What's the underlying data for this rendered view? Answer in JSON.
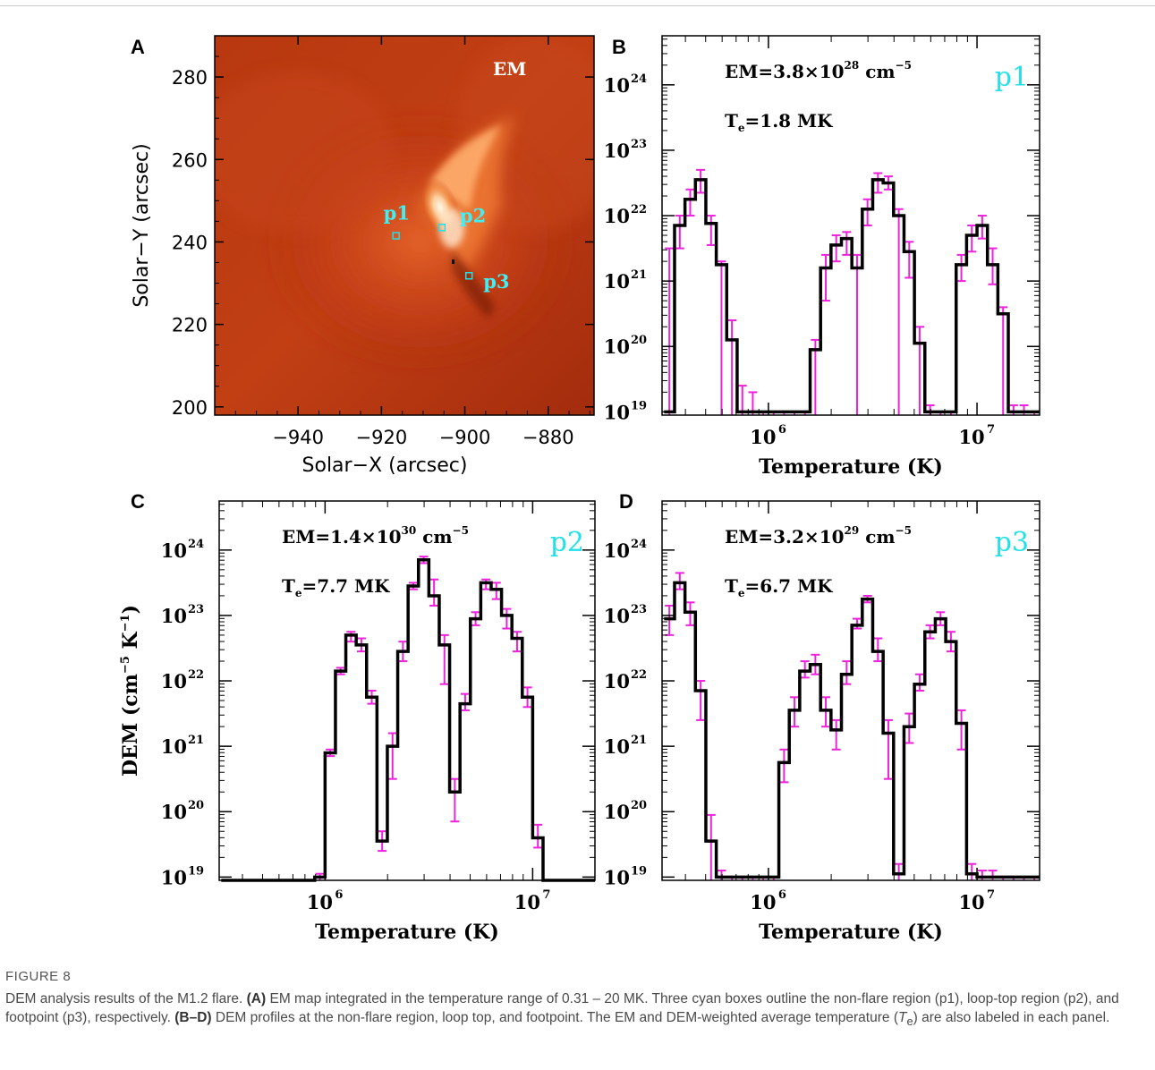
{
  "figure": {
    "caption_title": "FIGURE 8",
    "caption_parts": [
      {
        "t": "DEM analysis results of the M1.2 flare. ",
        "b": false
      },
      {
        "t": "(A)",
        "b": true
      },
      {
        "t": " EM map integrated in the temperature range of 0.31 – 20 MK. Three cyan boxes outline the non-flare region (p1), loop-top region (p2), and footpoint (p3), respectively. ",
        "b": false
      },
      {
        "t": "(B–D)",
        "b": true
      },
      {
        "t": " DEM profiles at the non-flare region, loop top, and footpoint. The EM and DEM-weighted average temperature (",
        "b": false
      },
      {
        "t": "T",
        "b": false,
        "i": true
      },
      {
        "t": "e",
        "b": false,
        "sub": true
      },
      {
        "t": ") are also labeled in each panel.",
        "b": false
      }
    ]
  },
  "colors": {
    "cyan": "#22e0e8",
    "magenta": "#ee22dd",
    "step": "#000000"
  },
  "chart_data": [
    {
      "panel": "A",
      "type": "heatmap",
      "map_label": "EM",
      "xlabel": "Solar−X (arcsec)",
      "ylabel": "Solar−Y (arcsec)",
      "xlim": [
        -960,
        -869
      ],
      "ylim": [
        198,
        290
      ],
      "xticks": [
        -940,
        -920,
        -900,
        -880
      ],
      "xtick_labels": [
        "−940",
        "−920",
        "−900",
        "−880"
      ],
      "yticks": [
        200,
        220,
        240,
        260,
        280
      ],
      "boxes": [
        {
          "name": "p1",
          "x": -916.5,
          "y": 241.5
        },
        {
          "name": "p2",
          "x": -905.5,
          "y": 243.5
        },
        {
          "name": "p3",
          "x": -899.0,
          "y": 231.8
        }
      ]
    },
    {
      "panel": "B",
      "type": "bar",
      "region": "p1",
      "em_text": "EM=3.8×10",
      "em_exp": "28",
      "em_unit": " cm",
      "em_unit_exp": "−5",
      "te_text": "T",
      "te_sub": "e",
      "te_value": "=1.8 MK",
      "xlabel": "Temperature (K)",
      "ylabel": "",
      "xlim_logT": [
        5.49,
        7.3
      ],
      "ylim_log": [
        18.95,
        24.75
      ],
      "logT_edges": [
        5.5,
        5.55,
        5.6,
        5.65,
        5.7,
        5.75,
        5.8,
        5.85,
        5.9,
        5.95,
        6.0,
        6.05,
        6.1,
        6.15,
        6.2,
        6.25,
        6.3,
        6.35,
        6.4,
        6.45,
        6.5,
        6.55,
        6.6,
        6.65,
        6.7,
        6.75,
        6.8,
        6.85,
        6.9,
        6.95,
        7.0,
        7.05,
        7.1,
        7.15,
        7.2,
        7.25,
        7.3
      ],
      "log_dem": [
        19.0,
        21.85,
        22.25,
        22.55,
        21.88,
        21.25,
        20.1,
        19.0,
        19.0,
        19.0,
        19.0,
        19.0,
        19.0,
        19.0,
        19.95,
        21.2,
        21.55,
        21.65,
        21.2,
        22.1,
        22.55,
        22.5,
        22.0,
        21.45,
        20.05,
        19.0,
        19.0,
        19.0,
        21.25,
        21.7,
        21.85,
        21.25,
        20.5,
        19.0,
        19.0,
        19.0
      ],
      "err_lo": [
        18.95,
        21.5,
        22.0,
        22.35,
        21.55,
        18.95,
        18.95,
        18.95,
        18.95,
        18.95,
        18.95,
        18.95,
        18.95,
        18.95,
        18.95,
        20.7,
        21.3,
        21.4,
        18.95,
        21.85,
        22.35,
        22.4,
        18.95,
        21.05,
        18.95,
        18.95,
        18.95,
        18.95,
        21.0,
        21.45,
        21.65,
        20.95,
        18.95,
        18.95,
        18.95,
        18.95
      ],
      "err_hi": [
        21.5,
        22.0,
        22.4,
        22.7,
        22.0,
        21.3,
        20.4,
        19.4,
        19.3,
        19.0,
        19.0,
        19.0,
        19.0,
        19.0,
        20.1,
        21.4,
        21.7,
        21.75,
        21.4,
        22.25,
        22.65,
        22.6,
        22.1,
        21.6,
        20.3,
        19.1,
        19.0,
        19.0,
        21.4,
        21.85,
        22.0,
        21.5,
        20.6,
        19.1,
        19.1,
        19.0
      ]
    },
    {
      "panel": "C",
      "type": "bar",
      "region": "p2",
      "em_text": "EM=1.4×10",
      "em_exp": "30",
      "em_unit": " cm",
      "em_unit_exp": "−5",
      "te_text": "T",
      "te_sub": "e",
      "te_value": "=7.7 MK",
      "xlabel": "Temperature (K)",
      "ylabel": "DEM (cm",
      "ylabel_exp1": "−5",
      "ylabel_mid": " K",
      "ylabel_exp2": "−1",
      "ylabel_end": ")",
      "xlim_logT": [
        5.49,
        7.3
      ],
      "ylim_log": [
        18.95,
        24.75
      ],
      "logT_edges": [
        5.5,
        5.55,
        5.6,
        5.65,
        5.7,
        5.75,
        5.8,
        5.85,
        5.9,
        5.95,
        6.0,
        6.05,
        6.1,
        6.15,
        6.2,
        6.25,
        6.3,
        6.35,
        6.4,
        6.45,
        6.5,
        6.55,
        6.6,
        6.65,
        6.7,
        6.75,
        6.8,
        6.85,
        6.9,
        6.95,
        7.0,
        7.05,
        7.1,
        7.15,
        7.2,
        7.25,
        7.3
      ],
      "log_dem": [
        18.95,
        18.95,
        18.95,
        18.95,
        18.95,
        18.95,
        18.95,
        18.95,
        18.95,
        19.0,
        20.9,
        22.15,
        22.7,
        22.55,
        21.75,
        19.55,
        21.0,
        22.45,
        23.45,
        23.85,
        23.3,
        22.55,
        20.3,
        21.65,
        22.95,
        23.5,
        23.4,
        23.0,
        22.65,
        21.75,
        19.6,
        18.95,
        18.95,
        18.95,
        18.95,
        18.95
      ],
      "err_lo": [
        18.95,
        18.95,
        18.95,
        18.95,
        18.95,
        18.95,
        18.95,
        18.95,
        18.95,
        18.95,
        20.85,
        22.1,
        22.6,
        22.45,
        21.65,
        19.4,
        20.5,
        22.3,
        23.4,
        23.8,
        23.15,
        21.95,
        19.85,
        21.55,
        22.85,
        23.4,
        23.25,
        22.8,
        22.45,
        21.6,
        19.45,
        18.95,
        18.95,
        18.95,
        18.95,
        18.95
      ],
      "err_hi": [
        18.95,
        18.95,
        18.95,
        18.95,
        18.95,
        18.95,
        18.95,
        18.95,
        18.95,
        19.05,
        20.95,
        22.2,
        22.75,
        22.65,
        21.85,
        19.7,
        21.2,
        22.6,
        23.5,
        23.9,
        23.55,
        22.7,
        20.5,
        21.8,
        23.05,
        23.55,
        23.5,
        23.1,
        22.75,
        21.9,
        19.8,
        18.95,
        18.95,
        18.95,
        18.95,
        18.95
      ]
    },
    {
      "panel": "D",
      "type": "bar",
      "region": "p3",
      "em_text": "EM=3.2×10",
      "em_exp": "29",
      "em_unit": " cm",
      "em_unit_exp": "−5",
      "te_text": "T",
      "te_sub": "e",
      "te_value": "=6.7 MK",
      "xlabel": "Temperature (K)",
      "ylabel": "",
      "xlim_logT": [
        5.49,
        7.3
      ],
      "ylim_log": [
        18.95,
        24.75
      ],
      "logT_edges": [
        5.5,
        5.55,
        5.6,
        5.65,
        5.7,
        5.75,
        5.8,
        5.85,
        5.9,
        5.95,
        6.0,
        6.05,
        6.1,
        6.15,
        6.2,
        6.25,
        6.3,
        6.35,
        6.4,
        6.45,
        6.5,
        6.55,
        6.6,
        6.65,
        6.7,
        6.75,
        6.8,
        6.85,
        6.9,
        6.95,
        7.0,
        7.05,
        7.1,
        7.15,
        7.2,
        7.25,
        7.3
      ],
      "log_dem": [
        22.95,
        23.5,
        23.05,
        21.85,
        19.55,
        19.0,
        19.0,
        19.0,
        19.0,
        19.0,
        19.0,
        20.75,
        21.55,
        22.15,
        22.25,
        21.55,
        21.25,
        22.1,
        22.85,
        23.25,
        22.45,
        21.2,
        19.05,
        21.3,
        21.95,
        22.75,
        22.95,
        22.6,
        21.35,
        19.05,
        19.0,
        19.0,
        19.0,
        19.0,
        19.0,
        19.0
      ],
      "err_lo": [
        22.7,
        23.4,
        22.85,
        21.4,
        18.95,
        18.95,
        18.95,
        18.95,
        18.95,
        18.95,
        18.95,
        20.45,
        21.3,
        22.05,
        22.1,
        21.3,
        20.95,
        21.95,
        22.8,
        23.2,
        22.3,
        20.5,
        18.95,
        21.05,
        21.85,
        22.65,
        22.85,
        22.45,
        20.95,
        18.95,
        18.95,
        18.95,
        18.95,
        18.95,
        18.95,
        18.95
      ],
      "err_hi": [
        23.15,
        23.65,
        23.2,
        22.0,
        19.95,
        19.1,
        19.0,
        19.0,
        19.0,
        19.0,
        19.0,
        20.95,
        21.75,
        22.3,
        22.4,
        21.75,
        21.4,
        22.3,
        22.95,
        23.3,
        22.65,
        21.4,
        19.2,
        21.5,
        22.1,
        22.85,
        23.05,
        22.75,
        21.55,
        19.2,
        19.1,
        19.1,
        19.0,
        19.0,
        19.0,
        19.0
      ]
    }
  ]
}
